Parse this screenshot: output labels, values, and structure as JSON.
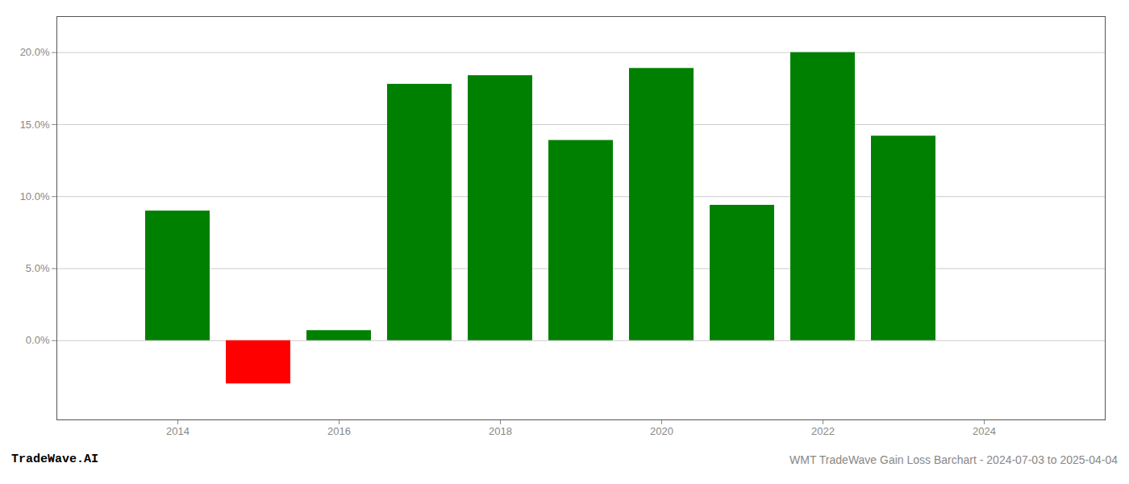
{
  "chart_data": {
    "type": "bar",
    "title": "WMT TradeWave Gain Loss Barchart - 2024-07-03 to 2025-04-04",
    "annotations": [
      "TradeWave.AI"
    ],
    "x": [
      2014,
      2015,
      2016,
      2017,
      2018,
      2019,
      2020,
      2021,
      2022,
      2023
    ],
    "values": [
      0.09,
      -0.03,
      0.007,
      0.178,
      0.184,
      0.139,
      0.189,
      0.094,
      0.2,
      0.142
    ],
    "colors": [
      "#008000",
      "#ff0000",
      "#008000",
      "#008000",
      "#008000",
      "#008000",
      "#008000",
      "#008000",
      "#008000",
      "#008000"
    ],
    "xlim": [
      2012.5,
      2025.5
    ],
    "xticks": [
      2014,
      2016,
      2018,
      2020,
      2022,
      2024
    ],
    "ylim": [
      -0.055,
      0.225
    ],
    "yticks": [
      {
        "value": 0.0,
        "label": "0.0%"
      },
      {
        "value": 0.05,
        "label": "5.0%"
      },
      {
        "value": 0.1,
        "label": "10.0%"
      },
      {
        "value": 0.15,
        "label": "15.0%"
      },
      {
        "value": 0.2,
        "label": "20.0%"
      }
    ],
    "grid": true
  }
}
